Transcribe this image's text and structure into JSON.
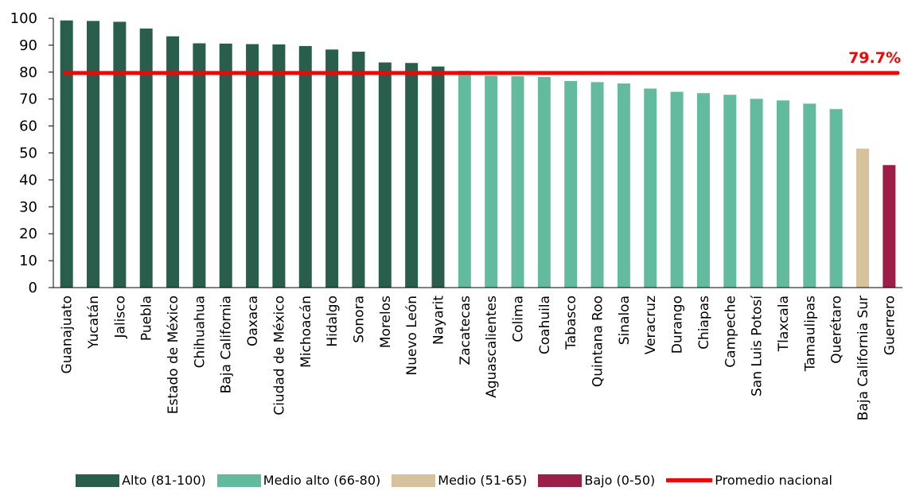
{
  "chart_data": {
    "type": "bar",
    "categories": [
      "Guanajuato",
      "Yucatán",
      "Jalisco",
      "Puebla",
      "Estado de México",
      "Chihuahua",
      "Baja California",
      "Oaxaca",
      "Ciudad de México",
      "Michoacán",
      "Hidalgo",
      "Sonora",
      "Morelos",
      "Nuevo León",
      "Nayarit",
      "Zacatecas",
      "Aguascalientes",
      "Colima",
      "Coahuila",
      "Tabasco",
      "Quintana Roo",
      "Sinaloa",
      "Veracruz",
      "Durango",
      "Chiapas",
      "Campeche",
      "San Luis Potosí",
      "Tlaxcala",
      "Tamaulipas",
      "Querétaro",
      "Baja California Sur",
      "Guerrero"
    ],
    "values": [
      99.2,
      99.0,
      98.7,
      96.2,
      93.3,
      90.7,
      90.6,
      90.4,
      90.3,
      89.7,
      88.4,
      87.6,
      83.6,
      83.4,
      82.1,
      80.5,
      78.7,
      78.5,
      78.2,
      76.7,
      76.3,
      75.8,
      73.9,
      72.7,
      72.2,
      71.6,
      70.1,
      69.5,
      68.3,
      66.3,
      51.6,
      45.5
    ],
    "groups": [
      "alto",
      "alto",
      "alto",
      "alto",
      "alto",
      "alto",
      "alto",
      "alto",
      "alto",
      "alto",
      "alto",
      "alto",
      "alto",
      "alto",
      "alto",
      "medio_alto",
      "medio_alto",
      "medio_alto",
      "medio_alto",
      "medio_alto",
      "medio_alto",
      "medio_alto",
      "medio_alto",
      "medio_alto",
      "medio_alto",
      "medio_alto",
      "medio_alto",
      "medio_alto",
      "medio_alto",
      "medio_alto",
      "medio",
      "bajo"
    ],
    "group_colors": {
      "alto": "#285e4b",
      "medio_alto": "#63bb9f",
      "medio": "#d6c29c",
      "bajo": "#9b1f46"
    },
    "average": {
      "value": 79.7,
      "label": "79.7%",
      "color": "#ff0000"
    },
    "yticks": [
      0,
      10,
      20,
      30,
      40,
      50,
      60,
      70,
      80,
      90,
      100
    ],
    "ylim": [
      0,
      100
    ],
    "grid": false,
    "legend_position": "bottom",
    "title": "",
    "xlabel": "",
    "ylabel": ""
  },
  "legend": [
    {
      "key": "alto",
      "label": "Alto (81-100)",
      "kind": "box",
      "color": "#285e4b"
    },
    {
      "key": "medio_alto",
      "label": "Medio alto (66-80)",
      "kind": "box",
      "color": "#63bb9f"
    },
    {
      "key": "medio",
      "label": "Medio (51-65)",
      "kind": "box",
      "color": "#d6c29c"
    },
    {
      "key": "bajo",
      "label": "Bajo (0-50)",
      "kind": "box",
      "color": "#9b1f46"
    },
    {
      "key": "promedio",
      "label": "Promedio nacional",
      "kind": "line",
      "color": "#ff0000"
    }
  ]
}
